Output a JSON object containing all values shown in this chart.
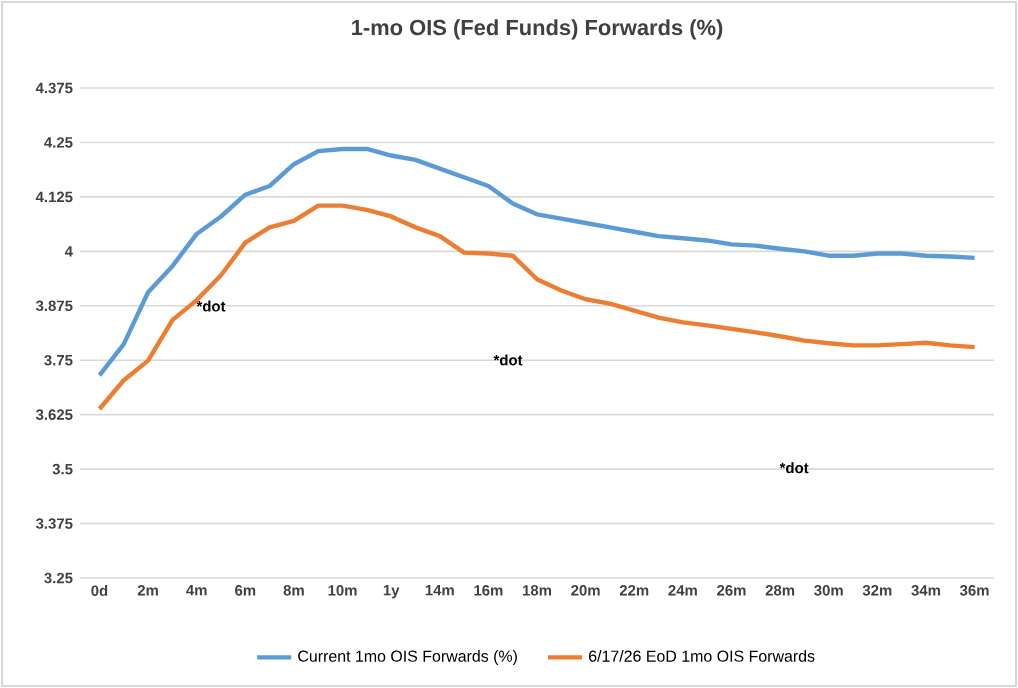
{
  "chart_data": {
    "type": "line",
    "title": "1-mo OIS (Fed Funds) Forwards (%)",
    "categories": [
      "0d",
      null,
      "2m",
      null,
      "4m",
      null,
      "6m",
      null,
      "8m",
      null,
      "10m",
      null,
      "1y",
      null,
      "14m",
      null,
      "16m",
      null,
      "18m",
      null,
      "20m",
      null,
      "22m",
      null,
      "24m",
      null,
      "26m",
      null,
      "28m",
      null,
      "30m",
      null,
      "32m",
      null,
      "34m",
      null,
      "36m"
    ],
    "series": [
      {
        "name": "Current 1mo OIS Forwards (%)",
        "color": "#5b9bd5",
        "values": [
          3.715,
          3.787,
          3.906,
          3.966,
          4.04,
          4.08,
          4.13,
          4.15,
          4.2,
          4.23,
          4.235,
          4.235,
          4.22,
          4.21,
          4.19,
          4.17,
          4.15,
          4.11,
          4.085,
          4.075,
          4.065,
          4.055,
          4.045,
          4.035,
          4.03,
          4.025,
          4.016,
          4.013,
          4.006,
          4.0,
          3.99,
          3.99,
          3.995,
          3.995,
          3.99,
          3.988,
          3.985
        ]
      },
      {
        "name": "6/17/26 EoD 1mo OIS Forwards",
        "color": "#ed7d31",
        "values": [
          3.638,
          3.704,
          3.749,
          3.842,
          3.888,
          3.945,
          4.02,
          4.055,
          4.07,
          4.105,
          4.105,
          4.095,
          4.08,
          4.055,
          4.035,
          3.997,
          3.995,
          3.99,
          3.936,
          3.91,
          3.89,
          3.88,
          3.864,
          3.848,
          3.837,
          3.83,
          3.822,
          3.814,
          3.805,
          3.795,
          3.789,
          3.784,
          3.784,
          3.787,
          3.79,
          3.784,
          3.78
        ]
      }
    ],
    "ylim": [
      3.25,
      4.375
    ],
    "yticks": [
      3.25,
      3.375,
      3.5,
      3.625,
      3.75,
      3.875,
      4,
      4.125,
      4.25,
      4.375
    ],
    "grid": "y",
    "legend": "bottom",
    "marker": "none",
    "line_style": "solid",
    "annotations": [
      "*dot",
      "*dot",
      "*dot"
    ]
  }
}
